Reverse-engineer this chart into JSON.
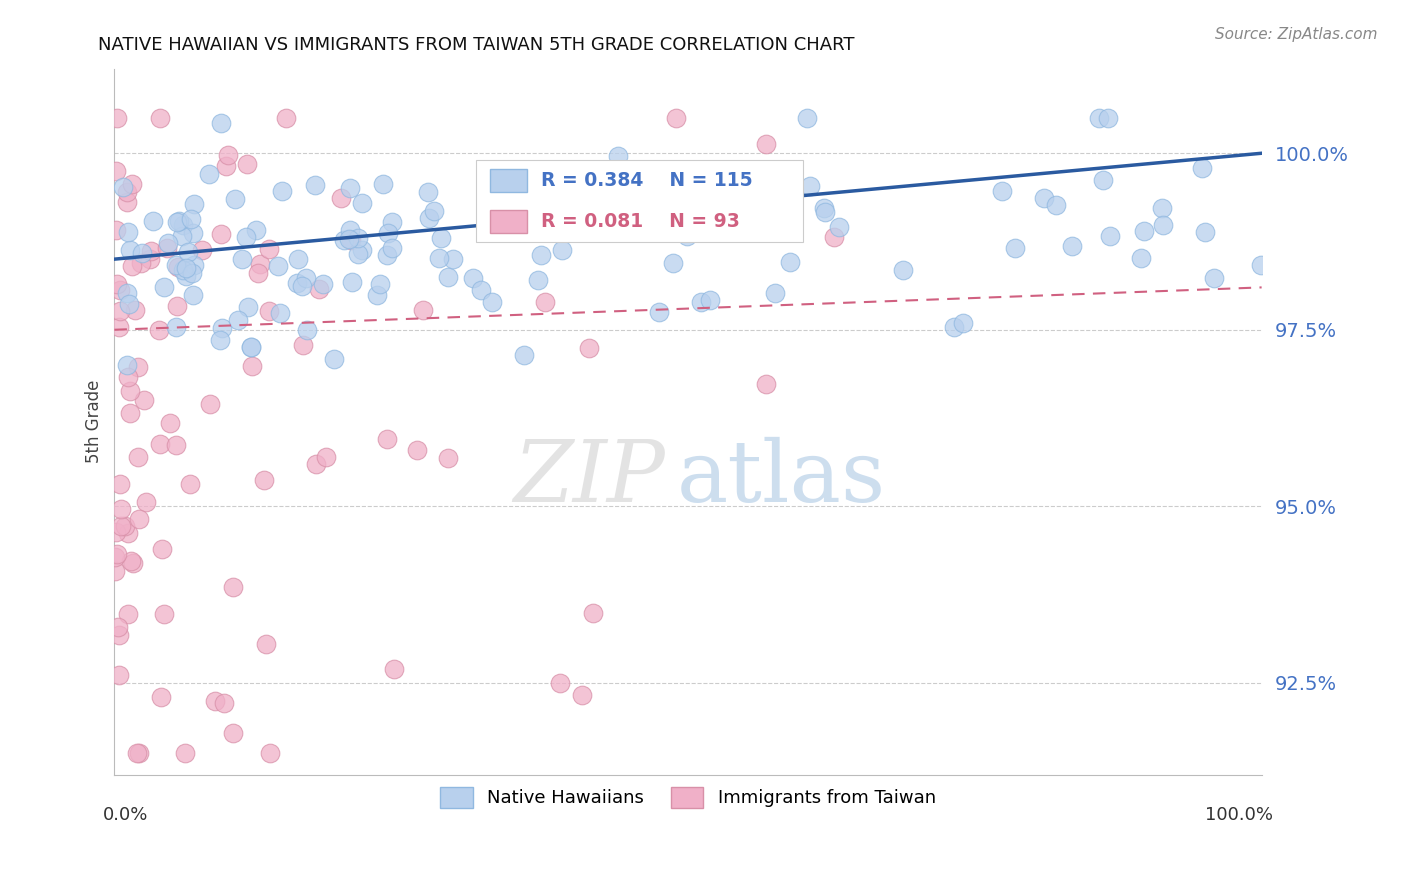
{
  "title": "NATIVE HAWAIIAN VS IMMIGRANTS FROM TAIWAN 5TH GRADE CORRELATION CHART",
  "source": "Source: ZipAtlas.com",
  "ylabel": "5th Grade",
  "legend_label1": "Native Hawaiians",
  "legend_label2": "Immigrants from Taiwan",
  "R1": 0.384,
  "N1": 115,
  "R2": 0.081,
  "N2": 93,
  "color_blue": "#b8d0ed",
  "color_blue_edge": "#90b8e0",
  "color_blue_line": "#2a5aa0",
  "color_pink": "#f0b0c8",
  "color_pink_edge": "#d890a8",
  "color_pink_line": "#d06080",
  "yticks": [
    92.5,
    95.0,
    97.5,
    100.0
  ],
  "ymin": 91.2,
  "ymax": 101.2,
  "xmin": 0.0,
  "xmax": 100.0,
  "blue_trend_x0": 0,
  "blue_trend_y0": 98.5,
  "blue_trend_x1": 100,
  "blue_trend_y1": 100.0,
  "pink_trend_x0": 0,
  "pink_trend_y0": 97.5,
  "pink_trend_x1": 100,
  "pink_trend_y1": 98.1
}
